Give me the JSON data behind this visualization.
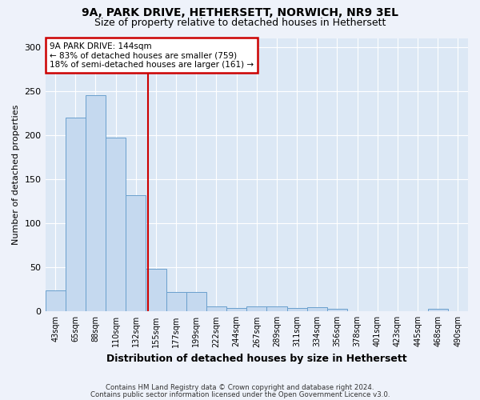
{
  "title1": "9A, PARK DRIVE, HETHERSETT, NORWICH, NR9 3EL",
  "title2": "Size of property relative to detached houses in Hethersett",
  "xlabel": "Distribution of detached houses by size in Hethersett",
  "ylabel": "Number of detached properties",
  "bar_color": "#c5d9ef",
  "bar_edge_color": "#6aa0cd",
  "bin_labels": [
    "43sqm",
    "65sqm",
    "88sqm",
    "110sqm",
    "132sqm",
    "155sqm",
    "177sqm",
    "199sqm",
    "222sqm",
    "244sqm",
    "267sqm",
    "289sqm",
    "311sqm",
    "334sqm",
    "356sqm",
    "378sqm",
    "401sqm",
    "423sqm",
    "445sqm",
    "468sqm",
    "490sqm"
  ],
  "bar_values": [
    24,
    220,
    245,
    197,
    132,
    48,
    22,
    22,
    6,
    4,
    6,
    6,
    4,
    5,
    3,
    0,
    0,
    0,
    0,
    3,
    0
  ],
  "ylim": [
    0,
    310
  ],
  "yticks": [
    0,
    50,
    100,
    150,
    200,
    250,
    300
  ],
  "property_bin_index": 4.6,
  "annotation_line1": "9A PARK DRIVE: 144sqm",
  "annotation_line2": "← 83% of detached houses are smaller (759)",
  "annotation_line3": "18% of semi-detached houses are larger (161) →",
  "annotation_box_color": "#ffffff",
  "annotation_box_edge_color": "#cc0000",
  "vline_color": "#cc0000",
  "footer1": "Contains HM Land Registry data © Crown copyright and database right 2024.",
  "footer2": "Contains public sector information licensed under the Open Government Licence v3.0.",
  "background_color": "#eef2fa",
  "plot_bg_color": "#dce8f5",
  "grid_color": "#ffffff"
}
